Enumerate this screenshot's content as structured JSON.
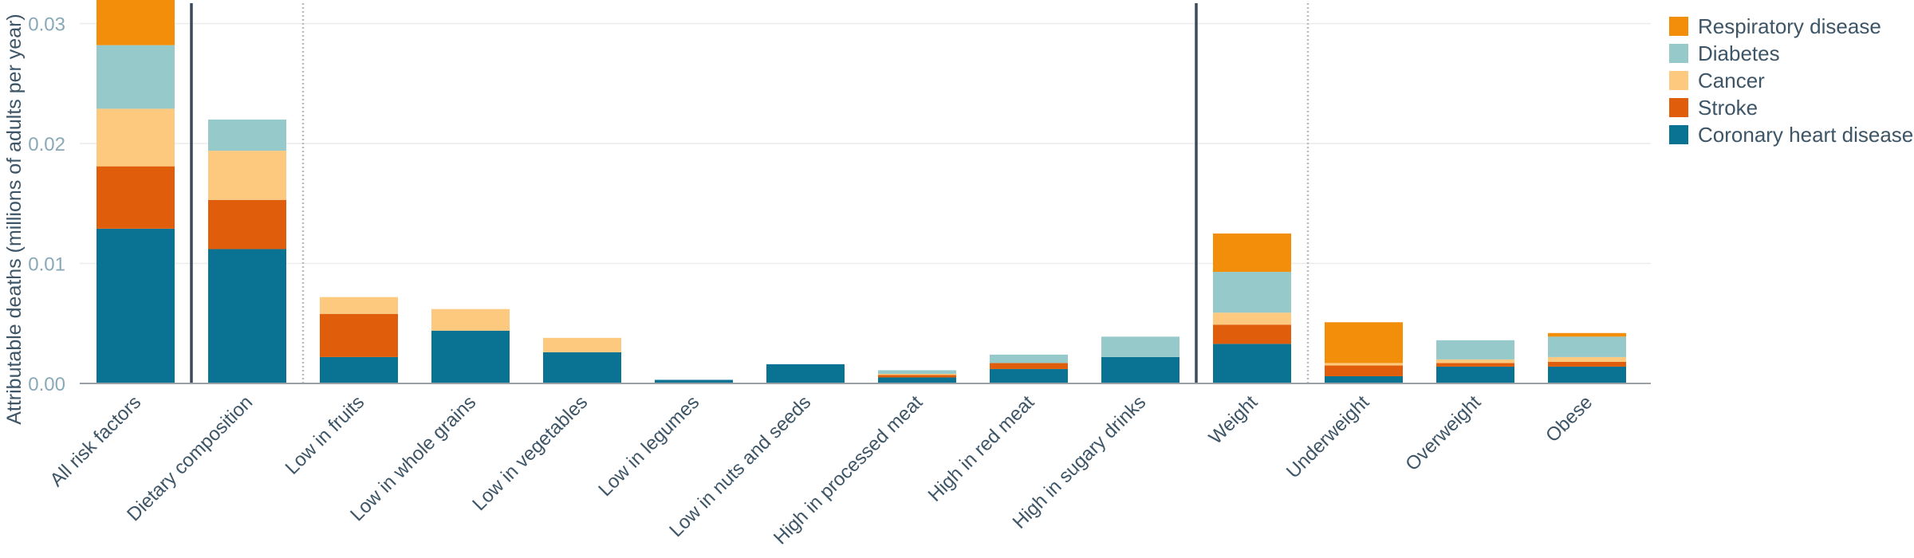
{
  "chart_data": {
    "type": "bar",
    "stacked": true,
    "title": "",
    "xlabel": "",
    "ylabel": "Attributable deaths (millions of adults per year)",
    "ylim": [
      0,
      0.0317
    ],
    "yticks": [
      0,
      0.01,
      0.02,
      0.03
    ],
    "ytick_labels": [
      "0.00",
      "0.01",
      "0.02",
      "0.03"
    ],
    "grid": true,
    "legend_position": "right",
    "categories": [
      "All risk factors",
      "Dietary composition",
      "Low in fruits",
      "Low in whole grains",
      "Low in vegetables",
      "Low in legumes",
      "Low in nuts and seeds",
      "High in processed meat",
      "High in red meat",
      "High in sugary drinks",
      "Weight",
      "Underweight",
      "Overweight",
      "Obese"
    ],
    "group_separators_solid_after": [
      0,
      9
    ],
    "group_separators_dotted_after": [
      1,
      10
    ],
    "series": [
      {
        "name": "Coronary heart disease",
        "color": "#0a7394",
        "values": [
          0.0129,
          0.0112,
          0.0022,
          0.0044,
          0.0026,
          0.0003,
          0.0016,
          0.0005,
          0.0012,
          0.0022,
          0.0033,
          0.0006,
          0.0014,
          0.0014
        ]
      },
      {
        "name": "Stroke",
        "color": "#e05e0b",
        "values": [
          0.0052,
          0.0041,
          0.0036,
          0.0,
          0.0,
          0.0,
          0.0,
          0.0002,
          0.0005,
          0.0,
          0.0016,
          0.0009,
          0.0003,
          0.0004
        ]
      },
      {
        "name": "Cancer",
        "color": "#fcc97e",
        "values": [
          0.0048,
          0.0041,
          0.0014,
          0.0018,
          0.0012,
          0.0,
          0.0,
          0.0001,
          0.0,
          0.0,
          0.001,
          0.0002,
          0.0003,
          0.0004
        ]
      },
      {
        "name": "Diabetes",
        "color": "#96c9c9",
        "values": [
          0.0053,
          0.0026,
          0.0,
          0.0,
          0.0,
          0.0,
          0.0,
          0.0003,
          0.0007,
          0.0017,
          0.0034,
          0.0,
          0.0016,
          0.0017
        ]
      },
      {
        "name": "Respiratory disease",
        "color": "#f28e0a",
        "values": [
          0.004,
          0.0,
          0.0,
          0.0,
          0.0,
          0.0,
          0.0,
          0.0,
          0.0,
          0.0,
          0.0032,
          0.0034,
          0.0,
          0.0003
        ]
      }
    ],
    "legend_order": [
      "Respiratory disease",
      "Diabetes",
      "Cancer",
      "Stroke",
      "Coronary heart disease"
    ]
  }
}
